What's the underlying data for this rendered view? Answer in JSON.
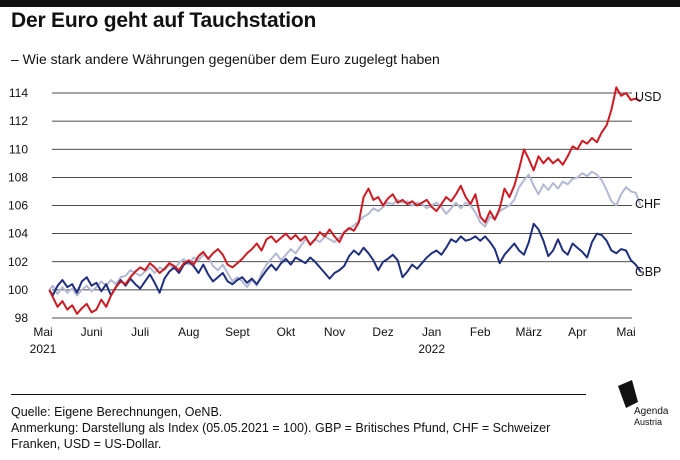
{
  "header": {
    "title": "Der Euro geht auf Tauchstation",
    "subtitle": "– Wie stark andere Währungen gegenüber dem Euro zugelegt haben"
  },
  "footer": {
    "source": "Quelle: Eigene Berechnungen, OeNB.",
    "note": "Anmerkung: Darstellung als Index (05.05.2021 = 100). GBP = Britisches Pfund, CHF = Schweizer Franken, USD = US-Dollar."
  },
  "logo": {
    "line1": "Agenda",
    "line2": "Austria",
    "icon": "agenda-austria-logo-icon"
  },
  "chart_data": {
    "type": "line",
    "title": "Der Euro geht auf Tauchstation",
    "subtitle": "– Wie stark andere Währungen gegenüber dem Euro zugelegt haben",
    "xlabel": "",
    "ylabel": "",
    "ylim": [
      98,
      115
    ],
    "yticks": [
      98,
      100,
      102,
      104,
      106,
      108,
      110,
      112,
      114
    ],
    "grid": "horizontal",
    "legend": "direct labels at right end of lines",
    "xticks": [
      {
        "label": "Mai",
        "sub": "2021",
        "month": 0
      },
      {
        "label": "Juni",
        "sub": "",
        "month": 1
      },
      {
        "label": "Juli",
        "sub": "",
        "month": 2
      },
      {
        "label": "Aug",
        "sub": "",
        "month": 3
      },
      {
        "label": "Sept",
        "sub": "",
        "month": 4
      },
      {
        "label": "Okt",
        "sub": "",
        "month": 5
      },
      {
        "label": "Nov",
        "sub": "",
        "month": 6
      },
      {
        "label": "Dez",
        "sub": "",
        "month": 7
      },
      {
        "label": "Jan",
        "sub": "2022",
        "month": 8
      },
      {
        "label": "Feb",
        "sub": "",
        "month": 9
      },
      {
        "label": "März",
        "sub": "",
        "month": 10
      },
      {
        "label": "Apr",
        "sub": "",
        "month": 11
      },
      {
        "label": "Mai",
        "sub": "",
        "month": 12
      }
    ],
    "x_unit": "months since Mai 2021",
    "series": [
      {
        "name": "USD",
        "color": "#cc1b22",
        "x": [
          0.13,
          0.2,
          0.3,
          0.4,
          0.5,
          0.6,
          0.7,
          0.8,
          0.9,
          1.0,
          1.1,
          1.2,
          1.3,
          1.4,
          1.5,
          1.6,
          1.7,
          1.8,
          1.9,
          2.0,
          2.1,
          2.2,
          2.3,
          2.4,
          2.5,
          2.6,
          2.7,
          2.8,
          2.9,
          3.0,
          3.1,
          3.2,
          3.3,
          3.4,
          3.5,
          3.6,
          3.7,
          3.8,
          3.9,
          4.0,
          4.1,
          4.2,
          4.3,
          4.4,
          4.5,
          4.6,
          4.7,
          4.8,
          4.9,
          5.0,
          5.1,
          5.2,
          5.3,
          5.4,
          5.5,
          5.6,
          5.7,
          5.8,
          5.9,
          6.0,
          6.1,
          6.2,
          6.3,
          6.4,
          6.5,
          6.6,
          6.7,
          6.8,
          6.9,
          7.0,
          7.1,
          7.2,
          7.3,
          7.4,
          7.5,
          7.6,
          7.7,
          7.8,
          7.9,
          8.0,
          8.1,
          8.2,
          8.3,
          8.4,
          8.5,
          8.6,
          8.7,
          8.8,
          8.9,
          9.0,
          9.1,
          9.2,
          9.3,
          9.4,
          9.5,
          9.6,
          9.7,
          9.8,
          9.9,
          10.0,
          10.1,
          10.2,
          10.3,
          10.4,
          10.5,
          10.6,
          10.7,
          10.8,
          10.9,
          11.0,
          11.1,
          11.2,
          11.3,
          11.4,
          11.5,
          11.6,
          11.7,
          11.8,
          11.9,
          12.0,
          12.1,
          12.2,
          12.3
        ],
        "y": [
          100.0,
          99.5,
          98.8,
          99.2,
          98.6,
          98.9,
          98.3,
          98.7,
          99.0,
          98.4,
          98.6,
          99.3,
          98.8,
          99.6,
          100.2,
          100.6,
          100.4,
          100.9,
          101.3,
          101.6,
          101.4,
          101.9,
          101.6,
          101.2,
          101.5,
          101.9,
          101.7,
          101.4,
          101.9,
          102.1,
          101.8,
          102.4,
          102.7,
          102.2,
          102.6,
          102.9,
          102.5,
          101.8,
          101.6,
          101.9,
          102.2,
          102.6,
          102.9,
          103.3,
          102.8,
          103.6,
          103.8,
          103.4,
          103.7,
          104.0,
          103.6,
          103.9,
          103.5,
          103.8,
          103.2,
          103.6,
          104.1,
          103.8,
          104.3,
          103.8,
          103.4,
          104.1,
          104.4,
          104.2,
          104.8,
          106.6,
          107.2,
          106.4,
          106.6,
          106.0,
          106.5,
          106.8,
          106.2,
          106.4,
          106.1,
          106.3,
          106.0,
          106.2,
          106.4,
          105.9,
          105.6,
          106.1,
          106.6,
          106.3,
          106.8,
          107.4,
          106.6,
          106.1,
          106.8,
          105.2,
          104.8,
          105.6,
          105.0,
          105.8,
          107.2,
          106.6,
          107.4,
          108.6,
          110.0,
          109.3,
          108.5,
          109.5,
          109.0,
          109.4,
          109.0,
          109.3,
          108.9,
          109.5,
          110.2,
          110.0,
          110.6,
          110.4,
          110.8,
          110.5,
          111.2,
          111.7,
          112.8,
          114.4,
          113.8,
          114.0,
          113.5,
          113.6,
          113.4
        ]
      },
      {
        "name": "CHF",
        "color": "#b4b9d3",
        "x": [
          0.13,
          0.2,
          0.3,
          0.4,
          0.5,
          0.6,
          0.7,
          0.8,
          0.9,
          1.0,
          1.1,
          1.2,
          1.3,
          1.4,
          1.5,
          1.6,
          1.7,
          1.8,
          1.9,
          2.0,
          2.1,
          2.2,
          2.3,
          2.4,
          2.5,
          2.6,
          2.7,
          2.8,
          2.9,
          3.0,
          3.1,
          3.2,
          3.3,
          3.4,
          3.5,
          3.6,
          3.7,
          3.8,
          3.9,
          4.0,
          4.1,
          4.2,
          4.3,
          4.4,
          4.5,
          4.6,
          4.7,
          4.8,
          4.9,
          5.0,
          5.1,
          5.2,
          5.3,
          5.4,
          5.5,
          5.6,
          5.7,
          5.8,
          5.9,
          6.0,
          6.1,
          6.2,
          6.3,
          6.4,
          6.5,
          6.6,
          6.7,
          6.8,
          6.9,
          7.0,
          7.1,
          7.2,
          7.3,
          7.4,
          7.5,
          7.6,
          7.7,
          7.8,
          7.9,
          8.0,
          8.1,
          8.2,
          8.3,
          8.4,
          8.5,
          8.6,
          8.7,
          8.8,
          8.9,
          9.0,
          9.1,
          9.2,
          9.3,
          9.4,
          9.5,
          9.6,
          9.7,
          9.8,
          9.9,
          10.0,
          10.1,
          10.2,
          10.3,
          10.4,
          10.5,
          10.6,
          10.7,
          10.8,
          10.9,
          11.0,
          11.1,
          11.2,
          11.3,
          11.4,
          11.5,
          11.6,
          11.7,
          11.8,
          11.9,
          12.0,
          12.1,
          12.2,
          12.3
        ],
        "y": [
          100.0,
          100.3,
          99.7,
          100.2,
          99.8,
          100.1,
          99.6,
          100.0,
          100.3,
          99.9,
          100.2,
          100.6,
          100.3,
          100.7,
          100.4,
          100.9,
          101.0,
          101.4,
          101.2,
          101.0,
          101.3,
          101.6,
          101.2,
          101.6,
          101.4,
          101.8,
          101.5,
          101.9,
          102.2,
          101.8,
          102.3,
          102.1,
          102.5,
          102.3,
          101.7,
          101.4,
          101.8,
          101.2,
          100.6,
          100.9,
          100.6,
          100.2,
          100.7,
          100.3,
          101.2,
          101.8,
          102.2,
          102.6,
          102.1,
          102.5,
          102.9,
          102.6,
          103.1,
          103.6,
          103.3,
          103.6,
          103.4,
          103.8,
          103.6,
          103.4,
          103.7,
          104.1,
          104.3,
          104.6,
          104.9,
          105.2,
          105.4,
          105.8,
          105.6,
          105.9,
          106.2,
          106.1,
          106.4,
          106.2,
          106.3,
          106.0,
          106.2,
          106.1,
          105.8,
          106.0,
          106.2,
          105.9,
          105.4,
          105.8,
          106.2,
          105.8,
          106.2,
          106.0,
          105.5,
          104.8,
          104.5,
          105.2,
          105.0,
          105.6,
          105.8,
          106.0,
          106.4,
          107.3,
          107.8,
          108.2,
          107.4,
          106.8,
          107.5,
          107.1,
          107.6,
          107.2,
          107.7,
          107.5,
          107.9,
          108.0,
          108.3,
          108.1,
          108.4,
          108.2,
          107.8,
          107.1,
          106.3,
          106.0,
          106.8,
          107.3,
          107.0,
          106.9,
          106.0
        ]
      },
      {
        "name": "GBP",
        "color": "#1f2f7e",
        "x": [
          0.13,
          0.2,
          0.3,
          0.4,
          0.5,
          0.6,
          0.7,
          0.8,
          0.9,
          1.0,
          1.1,
          1.2,
          1.3,
          1.4,
          1.5,
          1.6,
          1.7,
          1.8,
          1.9,
          2.0,
          2.1,
          2.2,
          2.3,
          2.4,
          2.5,
          2.6,
          2.7,
          2.8,
          2.9,
          3.0,
          3.1,
          3.2,
          3.3,
          3.4,
          3.5,
          3.6,
          3.7,
          3.8,
          3.9,
          4.0,
          4.1,
          4.2,
          4.3,
          4.4,
          4.5,
          4.6,
          4.7,
          4.8,
          4.9,
          5.0,
          5.1,
          5.2,
          5.3,
          5.4,
          5.5,
          5.6,
          5.7,
          5.8,
          5.9,
          6.0,
          6.1,
          6.2,
          6.3,
          6.4,
          6.5,
          6.6,
          6.7,
          6.8,
          6.9,
          7.0,
          7.1,
          7.2,
          7.3,
          7.4,
          7.5,
          7.6,
          7.7,
          7.8,
          7.9,
          8.0,
          8.1,
          8.2,
          8.3,
          8.4,
          8.5,
          8.6,
          8.7,
          8.8,
          8.9,
          9.0,
          9.1,
          9.2,
          9.3,
          9.4,
          9.5,
          9.6,
          9.7,
          9.8,
          9.9,
          10.0,
          10.1,
          10.2,
          10.3,
          10.4,
          10.5,
          10.6,
          10.7,
          10.8,
          10.9,
          11.0,
          11.1,
          11.2,
          11.3,
          11.4,
          11.5,
          11.6,
          11.7,
          11.8,
          11.9,
          12.0,
          12.1,
          12.2,
          12.3
        ],
        "y": [
          100.0,
          99.6,
          100.3,
          100.7,
          100.2,
          100.4,
          99.8,
          100.6,
          100.9,
          100.3,
          100.5,
          99.9,
          100.4,
          99.6,
          100.2,
          100.7,
          100.3,
          100.8,
          100.4,
          100.1,
          100.6,
          101.1,
          100.5,
          99.8,
          100.8,
          101.3,
          101.6,
          101.2,
          101.8,
          102.0,
          101.7,
          101.2,
          101.8,
          101.1,
          100.6,
          100.9,
          101.2,
          100.6,
          100.4,
          100.7,
          100.9,
          100.5,
          100.8,
          100.4,
          100.9,
          101.4,
          101.8,
          101.4,
          101.9,
          102.2,
          101.8,
          102.3,
          102.1,
          101.9,
          102.3,
          102.0,
          101.6,
          101.2,
          100.8,
          101.2,
          101.4,
          101.7,
          102.4,
          102.8,
          102.5,
          103.0,
          102.6,
          102.1,
          101.4,
          102.0,
          102.2,
          102.5,
          102.1,
          100.9,
          101.3,
          101.8,
          101.5,
          101.9,
          102.3,
          102.6,
          102.8,
          102.5,
          103.0,
          103.6,
          103.4,
          103.8,
          103.5,
          103.6,
          103.8,
          103.5,
          103.8,
          103.4,
          102.9,
          101.9,
          102.5,
          102.9,
          103.3,
          102.8,
          102.5,
          103.4,
          104.7,
          104.3,
          103.5,
          102.4,
          102.8,
          103.6,
          102.8,
          102.5,
          103.3,
          103.0,
          102.7,
          102.3,
          103.4,
          104.0,
          103.9,
          103.5,
          102.8,
          102.6,
          102.9,
          102.8,
          102.1,
          101.8,
          101.3
        ]
      }
    ]
  }
}
